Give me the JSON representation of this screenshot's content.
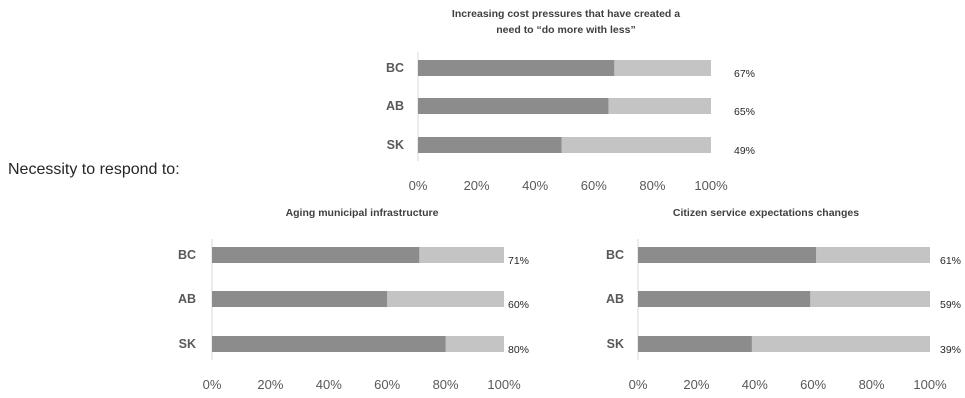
{
  "intro_text": "Necessity to respond to:",
  "colors": {
    "primary": "#8c8c8c",
    "remainder": "#c4c4c4"
  },
  "chart_data": [
    {
      "type": "bar",
      "orientation": "horizontal",
      "stacked": true,
      "title": [
        "Increasing cost pressures that have created a",
        "need to “do more with less”"
      ],
      "categories": [
        "BC",
        "AB",
        "SK"
      ],
      "values": [
        67,
        65,
        49
      ],
      "data_labels": [
        "67%",
        "65%",
        "49%"
      ],
      "xlim": [
        0,
        100
      ],
      "ticks": [
        "0%",
        "20%",
        "40%",
        "60%",
        "80%",
        "100%"
      ]
    },
    {
      "type": "bar",
      "orientation": "horizontal",
      "stacked": true,
      "title": [
        "Aging municipal infrastructure"
      ],
      "categories": [
        "BC",
        "AB",
        "SK"
      ],
      "values": [
        71,
        60,
        80
      ],
      "data_labels": [
        "71%",
        "60%",
        "80%"
      ],
      "xlim": [
        0,
        100
      ],
      "ticks": [
        "0%",
        "20%",
        "40%",
        "60%",
        "80%",
        "100%"
      ]
    },
    {
      "type": "bar",
      "orientation": "horizontal",
      "stacked": true,
      "title": [
        "Citizen service expectations changes"
      ],
      "categories": [
        "BC",
        "AB",
        "SK"
      ],
      "values": [
        61,
        59,
        39
      ],
      "data_labels": [
        "61%",
        "59%",
        "39%"
      ],
      "xlim": [
        0,
        100
      ],
      "ticks": [
        "0%",
        "20%",
        "40%",
        "60%",
        "80%",
        "100%"
      ]
    }
  ]
}
